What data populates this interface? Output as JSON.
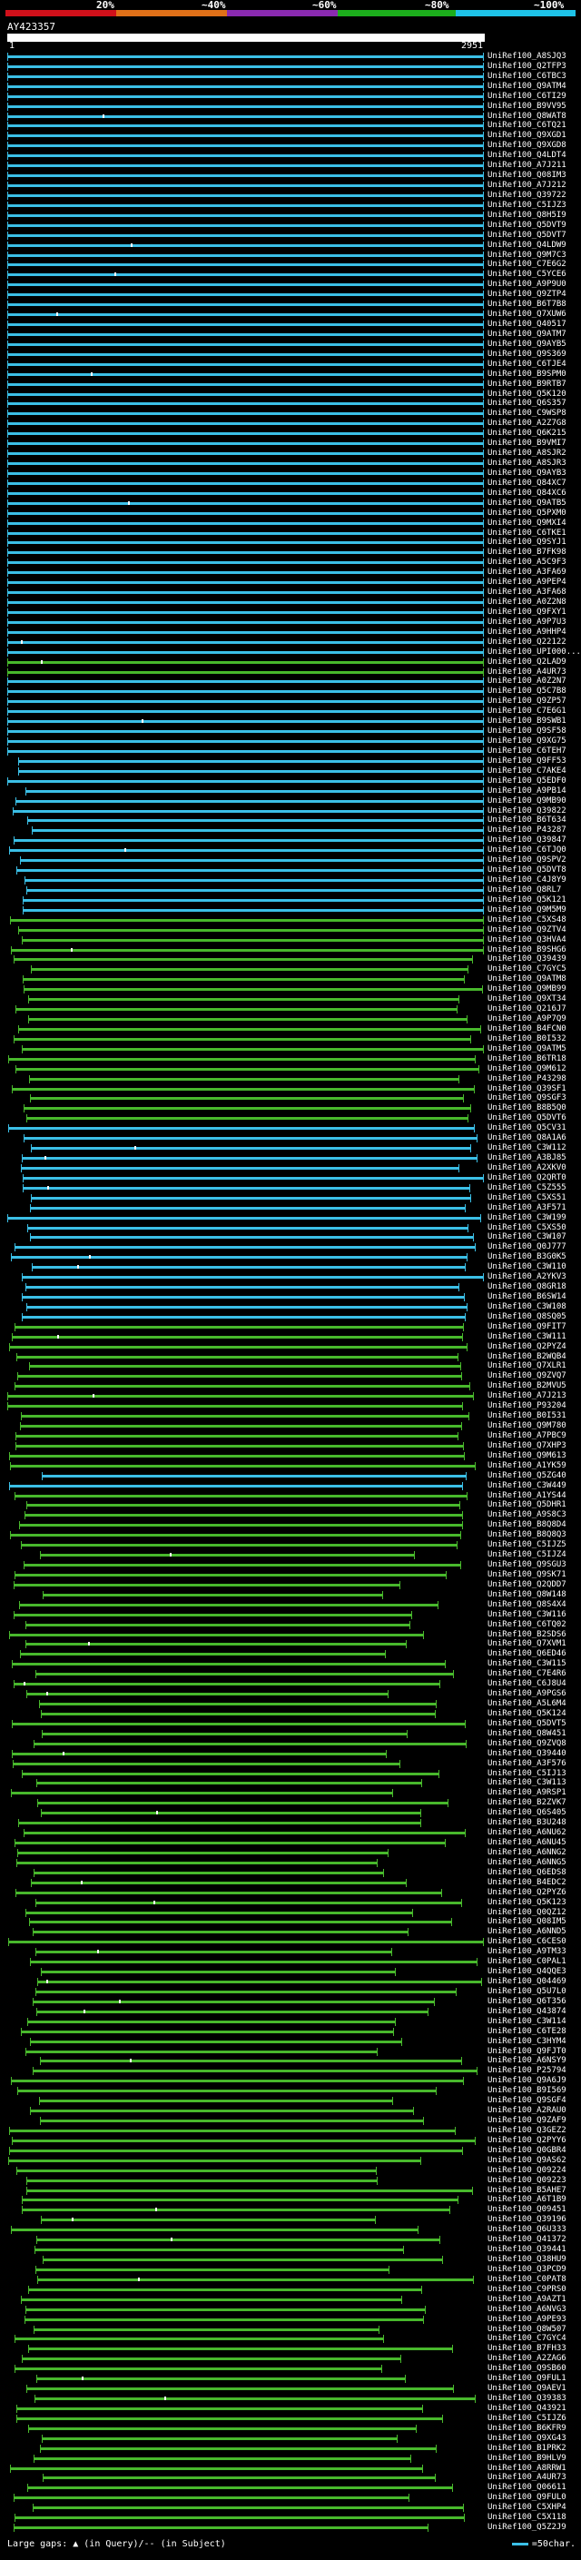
{
  "scale": {
    "labels": [
      "20%",
      "~40%",
      "~60%",
      "~80%",
      "~100%"
    ],
    "colors": [
      "#d0101a",
      "#e07018",
      "#8a2ab0",
      "#1cae1c",
      "#1ec2e8"
    ]
  },
  "query": {
    "name": "AY423357",
    "ruler_start": "1",
    "ruler_end": "2951"
  },
  "colors": {
    "cyan": "#3bbfe6",
    "green": "#48b82c",
    "gap": "#ffffff"
  },
  "hits": [
    {
      "label": "UniRef100_A8SJQ3",
      "color": "cyan"
    },
    {
      "label": "UniRef100_Q2TFP3",
      "color": "cyan"
    },
    {
      "label": "UniRef100_C6TBC3",
      "color": "cyan"
    },
    {
      "label": "UniRef100_Q9ATM4",
      "color": "cyan"
    },
    {
      "label": "UniRef100_C6TI29",
      "color": "cyan"
    },
    {
      "label": "UniRef100_B9VV95",
      "color": "cyan"
    },
    {
      "label": "UniRef100_Q8WAT8",
      "color": "cyan"
    },
    {
      "label": "UniRef100_C6TQ21",
      "color": "cyan"
    },
    {
      "label": "UniRef100_Q9XGD1",
      "color": "cyan"
    },
    {
      "label": "UniRef100_Q9XGD8",
      "color": "cyan"
    },
    {
      "label": "UniRef100_Q4LDT4",
      "color": "cyan"
    },
    {
      "label": "UniRef100_A7J211",
      "color": "cyan"
    },
    {
      "label": "UniRef100_Q08IM3",
      "color": "cyan"
    },
    {
      "label": "UniRef100_A7J212",
      "color": "cyan"
    },
    {
      "label": "UniRef100_Q39722",
      "color": "cyan"
    },
    {
      "label": "UniRef100_C5IJZ3",
      "color": "cyan"
    },
    {
      "label": "UniRef100_Q8H5I9",
      "color": "cyan"
    },
    {
      "label": "UniRef100_Q5DVT9",
      "color": "cyan"
    },
    {
      "label": "UniRef100_Q5DVT7",
      "color": "cyan"
    },
    {
      "label": "UniRef100_Q4LDW9",
      "color": "cyan"
    },
    {
      "label": "UniRef100_Q9M7C3",
      "color": "cyan"
    },
    {
      "label": "UniRef100_C7E6G2",
      "color": "cyan"
    },
    {
      "label": "UniRef100_C5YCE6",
      "color": "cyan"
    },
    {
      "label": "UniRef100_A9P9U0",
      "color": "cyan"
    },
    {
      "label": "UniRef100_Q9ZTP4",
      "color": "cyan"
    },
    {
      "label": "UniRef100_B6T7B8",
      "color": "cyan"
    },
    {
      "label": "UniRef100_Q7XUW6",
      "color": "cyan"
    },
    {
      "label": "UniRef100_Q40517",
      "color": "cyan"
    },
    {
      "label": "UniRef100_Q9ATM7",
      "color": "cyan"
    },
    {
      "label": "UniRef100_Q9AYB5",
      "color": "cyan"
    },
    {
      "label": "UniRef100_Q9S369",
      "color": "cyan"
    },
    {
      "label": "UniRef100_C6TJE4",
      "color": "cyan"
    },
    {
      "label": "UniRef100_B9SPM0",
      "color": "cyan"
    },
    {
      "label": "UniRef100_B9RTB7",
      "color": "cyan"
    },
    {
      "label": "UniRef100_Q5K120",
      "color": "cyan"
    },
    {
      "label": "UniRef100_Q6S357",
      "color": "cyan"
    },
    {
      "label": "UniRef100_C9WSP8",
      "color": "cyan"
    },
    {
      "label": "UniRef100_A2Z7G8",
      "color": "cyan"
    },
    {
      "label": "UniRef100_Q6K215",
      "color": "cyan"
    },
    {
      "label": "UniRef100_B9VMI7",
      "color": "cyan"
    },
    {
      "label": "UniRef100_A8SJR2",
      "color": "cyan"
    },
    {
      "label": "UniRef100_A8SJR3",
      "color": "cyan"
    },
    {
      "label": "UniRef100_Q9AYB3",
      "color": "cyan"
    },
    {
      "label": "UniRef100_Q84XC7",
      "color": "cyan"
    },
    {
      "label": "UniRef100_Q84XC6",
      "color": "cyan"
    },
    {
      "label": "UniRef100_Q9ATB5",
      "color": "cyan"
    },
    {
      "label": "UniRef100_Q5PXM0",
      "color": "cyan"
    },
    {
      "label": "UniRef100_Q9MXI4",
      "color": "cyan"
    },
    {
      "label": "UniRef100_C6TKE1",
      "color": "cyan"
    },
    {
      "label": "UniRef100_Q9SYJ1",
      "color": "cyan"
    },
    {
      "label": "UniRef100_B7FK98",
      "color": "cyan"
    },
    {
      "label": "UniRef100_A5C9F3",
      "color": "cyan"
    },
    {
      "label": "UniRef100_A3FA69",
      "color": "cyan"
    },
    {
      "label": "UniRef100_A9PEP4",
      "color": "cyan"
    },
    {
      "label": "UniRef100_A3FA68",
      "color": "cyan"
    },
    {
      "label": "UniRef100_A0Z2N8",
      "color": "cyan"
    },
    {
      "label": "UniRef100_Q9FXY1",
      "color": "cyan"
    },
    {
      "label": "UniRef100_A9P7U3",
      "color": "cyan"
    },
    {
      "label": "UniRef100_A9HHP4",
      "color": "cyan"
    },
    {
      "label": "UniRef100_Q22122",
      "color": "cyan"
    },
    {
      "label": "UniRef100_UPI000...",
      "color": "cyan"
    },
    {
      "label": "UniRef100_Q2LAD9",
      "color": "green"
    },
    {
      "label": "UniRef100_A4UR73",
      "color": "green"
    },
    {
      "label": "UniRef100_A0Z2N7",
      "color": "cyan"
    },
    {
      "label": "UniRef100_Q5C7B8",
      "color": "cyan"
    },
    {
      "label": "UniRef100_Q9ZP57",
      "color": "cyan"
    },
    {
      "label": "UniRef100_C7E6G1",
      "color": "cyan"
    },
    {
      "label": "UniRef100_B9SWB1",
      "color": "cyan"
    },
    {
      "label": "UniRef100_Q9SF58",
      "color": "cyan"
    },
    {
      "label": "UniRef100_Q9XG75",
      "color": "cyan"
    },
    {
      "label": "UniRef100_C6TEH7",
      "color": "cyan"
    },
    {
      "label": "UniRef100_Q9FF53",
      "color": "cyan"
    },
    {
      "label": "UniRef100_C7AKE4",
      "color": "cyan"
    },
    {
      "label": "UniRef100_Q5EDF0",
      "color": "cyan"
    },
    {
      "label": "UniRef100_A9PB14",
      "color": "cyan"
    },
    {
      "label": "UniRef100_Q9MB90",
      "color": "cyan"
    },
    {
      "label": "UniRef100_Q39822",
      "color": "cyan"
    },
    {
      "label": "UniRef100_B6T634",
      "color": "cyan"
    },
    {
      "label": "UniRef100_P43287",
      "color": "cyan"
    },
    {
      "label": "UniRef100_Q39847",
      "color": "cyan"
    },
    {
      "label": "UniRef100_C6TJQ0",
      "color": "cyan"
    },
    {
      "label": "UniRef100_Q9SPV2",
      "color": "cyan"
    },
    {
      "label": "UniRef100_Q5DVT8",
      "color": "cyan"
    },
    {
      "label": "UniRef100_C4J8Y9",
      "color": "cyan"
    },
    {
      "label": "UniRef100_Q8RL7",
      "color": "cyan"
    },
    {
      "label": "UniRef100_Q5K121",
      "color": "cyan"
    },
    {
      "label": "UniRef100_Q9M5M9",
      "color": "cyan"
    },
    {
      "label": "UniRef100_C5XS48",
      "color": "green"
    },
    {
      "label": "UniRef100_Q9ZTV4",
      "color": "green"
    },
    {
      "label": "UniRef100_Q3HVA4",
      "color": "green"
    },
    {
      "label": "UniRef100_B9SHG6",
      "color": "green"
    },
    {
      "label": "UniRef100_Q39439",
      "color": "green"
    },
    {
      "label": "UniRef100_C7GYC5",
      "color": "green"
    },
    {
      "label": "UniRef100_Q9ATM8",
      "color": "green"
    },
    {
      "label": "UniRef100_Q9MB99",
      "color": "green"
    },
    {
      "label": "UniRef100_Q9XT34",
      "color": "green"
    },
    {
      "label": "UniRef100_Q216J7",
      "color": "green"
    },
    {
      "label": "UniRef100_A9P7Q9",
      "color": "green"
    },
    {
      "label": "UniRef100_B4FCN0",
      "color": "green"
    },
    {
      "label": "UniRef100_B0I532",
      "color": "green"
    },
    {
      "label": "UniRef100_Q9ATM5",
      "color": "green"
    },
    {
      "label": "UniRef100_B6TR18",
      "color": "green"
    },
    {
      "label": "UniRef100_Q9M612",
      "color": "green"
    },
    {
      "label": "UniRef100_P43298",
      "color": "green"
    },
    {
      "label": "UniRef100_Q39SF1",
      "color": "green"
    },
    {
      "label": "UniRef100_Q9SGF3",
      "color": "green"
    },
    {
      "label": "UniRef100_B8B5Q0",
      "color": "green"
    },
    {
      "label": "UniRef100_Q5DVT6",
      "color": "green"
    },
    {
      "label": "UniRef100_Q5CV31",
      "color": "cyan"
    },
    {
      "label": "UniRef100_Q8A1A6",
      "color": "cyan"
    },
    {
      "label": "UniRef100_C3W112",
      "color": "cyan"
    },
    {
      "label": "UniRef100_A3BJ85",
      "color": "cyan"
    },
    {
      "label": "UniRef100_A2XKV0",
      "color": "cyan"
    },
    {
      "label": "UniRef100_Q2QRT0",
      "color": "cyan"
    },
    {
      "label": "UniRef100_C5Z555",
      "color": "cyan"
    },
    {
      "label": "UniRef100_C5XS51",
      "color": "cyan"
    },
    {
      "label": "UniRef100_A3F571",
      "color": "cyan"
    },
    {
      "label": "UniRef100_C3W199",
      "color": "cyan"
    },
    {
      "label": "UniRef100_C5XS50",
      "color": "cyan"
    },
    {
      "label": "UniRef100_C3W107",
      "color": "cyan"
    },
    {
      "label": "UniRef100_Q0J777",
      "color": "cyan"
    },
    {
      "label": "UniRef100_B3G0K5",
      "color": "cyan"
    },
    {
      "label": "UniRef100_C3W110",
      "color": "cyan"
    },
    {
      "label": "UniRef100_A2YKV3",
      "color": "cyan"
    },
    {
      "label": "UniRef100_Q8GR18",
      "color": "cyan"
    },
    {
      "label": "UniRef100_B6SW14",
      "color": "cyan"
    },
    {
      "label": "UniRef100_C3W108",
      "color": "cyan"
    },
    {
      "label": "UniRef100_Q8SQ05",
      "color": "cyan"
    },
    {
      "label": "UniRef100_Q9FIT7",
      "color": "green"
    },
    {
      "label": "UniRef100_C3W111",
      "color": "green"
    },
    {
      "label": "UniRef100_Q2PYZ4",
      "color": "green"
    },
    {
      "label": "UniRef100_B2WQB4",
      "color": "green"
    },
    {
      "label": "UniRef100_Q7XLR1",
      "color": "green"
    },
    {
      "label": "UniRef100_Q9ZVQ7",
      "color": "green"
    },
    {
      "label": "UniRef100_B2MVU5",
      "color": "green"
    },
    {
      "label": "UniRef100_A7J213",
      "color": "green"
    },
    {
      "label": "UniRef100_P93204",
      "color": "green"
    },
    {
      "label": "UniRef100_B0I531",
      "color": "green"
    },
    {
      "label": "UniRef100_Q9M780",
      "color": "green"
    },
    {
      "label": "UniRef100_A7PBC9",
      "color": "green"
    },
    {
      "label": "UniRef100_Q7XHP3",
      "color": "green"
    },
    {
      "label": "UniRef100_Q9M613",
      "color": "green"
    },
    {
      "label": "UniRef100_A1YK59",
      "color": "green"
    },
    {
      "label": "UniRef100_Q5ZG40",
      "color": "cyan"
    },
    {
      "label": "UniRef100_C3W449",
      "color": "cyan"
    },
    {
      "label": "UniRef100_A1YS44",
      "color": "green"
    },
    {
      "label": "UniRef100_Q5DHR1",
      "color": "green"
    },
    {
      "label": "UniRef100_A9S8C3",
      "color": "green"
    },
    {
      "label": "UniRef100_B8Q8D4",
      "color": "green"
    },
    {
      "label": "UniRef100_B8Q8Q3",
      "color": "green"
    },
    {
      "label": "UniRef100_C5IJZ5",
      "color": "green"
    },
    {
      "label": "UniRef100_C5IJZ4",
      "color": "green"
    },
    {
      "label": "UniRef100_Q9SGU3",
      "color": "green"
    },
    {
      "label": "UniRef100_Q9SK71",
      "color": "green"
    },
    {
      "label": "UniRef100_Q2QDD7",
      "color": "green"
    },
    {
      "label": "UniRef100_Q8W148",
      "color": "green"
    },
    {
      "label": "UniRef100_Q8S4X4",
      "color": "green"
    },
    {
      "label": "UniRef100_C3W116",
      "color": "green"
    },
    {
      "label": "UniRef100_C6TQ02",
      "color": "green"
    },
    {
      "label": "UniRef100_B2SDS6",
      "color": "green"
    },
    {
      "label": "UniRef100_Q7XVM1",
      "color": "green"
    },
    {
      "label": "UniRef100_Q6ED46",
      "color": "green"
    },
    {
      "label": "UniRef100_C3W115",
      "color": "green"
    },
    {
      "label": "UniRef100_C7E4R6",
      "color": "green"
    },
    {
      "label": "UniRef100_C6J8U4",
      "color": "green"
    },
    {
      "label": "UniRef100_A9PGS6",
      "color": "green"
    },
    {
      "label": "UniRef100_A5L6M4",
      "color": "green"
    },
    {
      "label": "UniRef100_Q5K124",
      "color": "green"
    },
    {
      "label": "UniRef100_Q5DVT5",
      "color": "green"
    },
    {
      "label": "UniRef100_Q8W451",
      "color": "green"
    },
    {
      "label": "UniRef100_Q9ZVQ8",
      "color": "green"
    },
    {
      "label": "UniRef100_Q39440",
      "color": "green"
    },
    {
      "label": "UniRef100_A3F576",
      "color": "green"
    },
    {
      "label": "UniRef100_C5IJ13",
      "color": "green"
    },
    {
      "label": "UniRef100_C3W113",
      "color": "green"
    },
    {
      "label": "UniRef100_A9RSP1",
      "color": "green"
    },
    {
      "label": "UniRef100_B2ZVK7",
      "color": "green"
    },
    {
      "label": "UniRef100_Q6S405",
      "color": "green"
    },
    {
      "label": "UniRef100_B3U248",
      "color": "green"
    },
    {
      "label": "UniRef100_A6NU62",
      "color": "green"
    },
    {
      "label": "UniRef100_A6NU45",
      "color": "green"
    },
    {
      "label": "UniRef100_A6NNG2",
      "color": "green"
    },
    {
      "label": "UniRef100_A6NNG5",
      "color": "green"
    },
    {
      "label": "UniRef100_Q6EDS8",
      "color": "green"
    },
    {
      "label": "UniRef100_B4EDC2",
      "color": "green"
    },
    {
      "label": "UniRef100_Q2PYZ6",
      "color": "green"
    },
    {
      "label": "UniRef100_Q5K123",
      "color": "green"
    },
    {
      "label": "UniRef100_Q0QZ12",
      "color": "green"
    },
    {
      "label": "UniRef100_Q08IM5",
      "color": "green"
    },
    {
      "label": "UniRef100_A6NND5",
      "color": "green"
    },
    {
      "label": "UniRef100_C6CES0",
      "color": "green"
    },
    {
      "label": "UniRef100_A9TM33",
      "color": "green"
    },
    {
      "label": "UniRef100_C0PAL1",
      "color": "green"
    },
    {
      "label": "UniRef100_Q4QQE3",
      "color": "green"
    },
    {
      "label": "UniRef100_Q04469",
      "color": "green"
    },
    {
      "label": "UniRef100_Q5U7L0",
      "color": "green"
    },
    {
      "label": "UniRef100_Q6T356",
      "color": "green"
    },
    {
      "label": "UniRef100_Q43874",
      "color": "green"
    },
    {
      "label": "UniRef100_C3W114",
      "color": "green"
    },
    {
      "label": "UniRef100_C6TE28",
      "color": "green"
    },
    {
      "label": "UniRef100_C3HYM4",
      "color": "green"
    },
    {
      "label": "UniRef100_Q9FJT0",
      "color": "green"
    },
    {
      "label": "UniRef100_A6NSY9",
      "color": "green"
    },
    {
      "label": "UniRef100_P25794",
      "color": "green"
    },
    {
      "label": "UniRef100_Q9A6J9",
      "color": "green"
    },
    {
      "label": "UniRef100_B9I569",
      "color": "green"
    },
    {
      "label": "UniRef100_Q9SGF4",
      "color": "green"
    },
    {
      "label": "UniRef100_A2RAU0",
      "color": "green"
    },
    {
      "label": "UniRef100_Q9ZAF9",
      "color": "green"
    },
    {
      "label": "UniRef100_Q3GEZ2",
      "color": "green"
    },
    {
      "label": "UniRef100_Q2PYY6",
      "color": "green"
    },
    {
      "label": "UniRef100_Q0GBR4",
      "color": "green"
    },
    {
      "label": "UniRef100_Q9AS62",
      "color": "green"
    },
    {
      "label": "UniRef100_Q09224",
      "color": "green"
    },
    {
      "label": "UniRef100_Q09223",
      "color": "green"
    },
    {
      "label": "UniRef100_B5AHE7",
      "color": "green"
    },
    {
      "label": "UniRef100_A6T1B9",
      "color": "green"
    },
    {
      "label": "UniRef100_Q09451",
      "color": "green"
    },
    {
      "label": "UniRef100_Q39196",
      "color": "green"
    },
    {
      "label": "UniRef100_Q6U333",
      "color": "green"
    },
    {
      "label": "UniRef100_Q41372",
      "color": "green"
    },
    {
      "label": "UniRef100_Q39441",
      "color": "green"
    },
    {
      "label": "UniRef100_Q38HU9",
      "color": "green"
    },
    {
      "label": "UniRef100_Q3PCD9",
      "color": "green"
    },
    {
      "label": "UniRef100_C0PAT8",
      "color": "green"
    },
    {
      "label": "UniRef100_C9PRS0",
      "color": "green"
    },
    {
      "label": "UniRef100_A9AZT1",
      "color": "green"
    },
    {
      "label": "UniRef100_A6NVG3",
      "color": "green"
    },
    {
      "label": "UniRef100_A9PE93",
      "color": "green"
    },
    {
      "label": "UniRef100_Q8W507",
      "color": "green"
    },
    {
      "label": "UniRef100_C7GYC4",
      "color": "green"
    },
    {
      "label": "UniRef100_B7FH33",
      "color": "green"
    },
    {
      "label": "UniRef100_A2ZAG6",
      "color": "green"
    },
    {
      "label": "UniRef100_Q9SB60",
      "color": "green"
    },
    {
      "label": "UniRef100_Q9FUL1",
      "color": "green"
    },
    {
      "label": "UniRef100_Q9AEV1",
      "color": "green"
    },
    {
      "label": "UniRef100_Q39383",
      "color": "green"
    },
    {
      "label": "UniRef100_Q43921",
      "color": "green"
    },
    {
      "label": "UniRef100_C5IJZ6",
      "color": "green"
    },
    {
      "label": "UniRef100_B6KFR9",
      "color": "green"
    },
    {
      "label": "UniRef100_Q9XG43",
      "color": "green"
    },
    {
      "label": "UniRef100_B1PRK2",
      "color": "green"
    },
    {
      "label": "UniRef100_B9HLV9",
      "color": "green"
    },
    {
      "label": "UniRef100_A8RRW1",
      "color": "green"
    },
    {
      "label": "UniRef100_A4UR73",
      "color": "green"
    },
    {
      "label": "UniRef100_Q06611",
      "color": "green"
    },
    {
      "label": "UniRef100_Q9FUL0",
      "color": "green"
    },
    {
      "label": "UniRef100_C5XHP4",
      "color": "green"
    },
    {
      "label": "UniRef100_C5X118",
      "color": "green"
    },
    {
      "label": "UniRef100_Q5Z2J9",
      "color": "green"
    }
  ],
  "legend": {
    "left": "Large gaps: ▲ (in Query)/-- (in Subject)",
    "right": "=50char."
  }
}
